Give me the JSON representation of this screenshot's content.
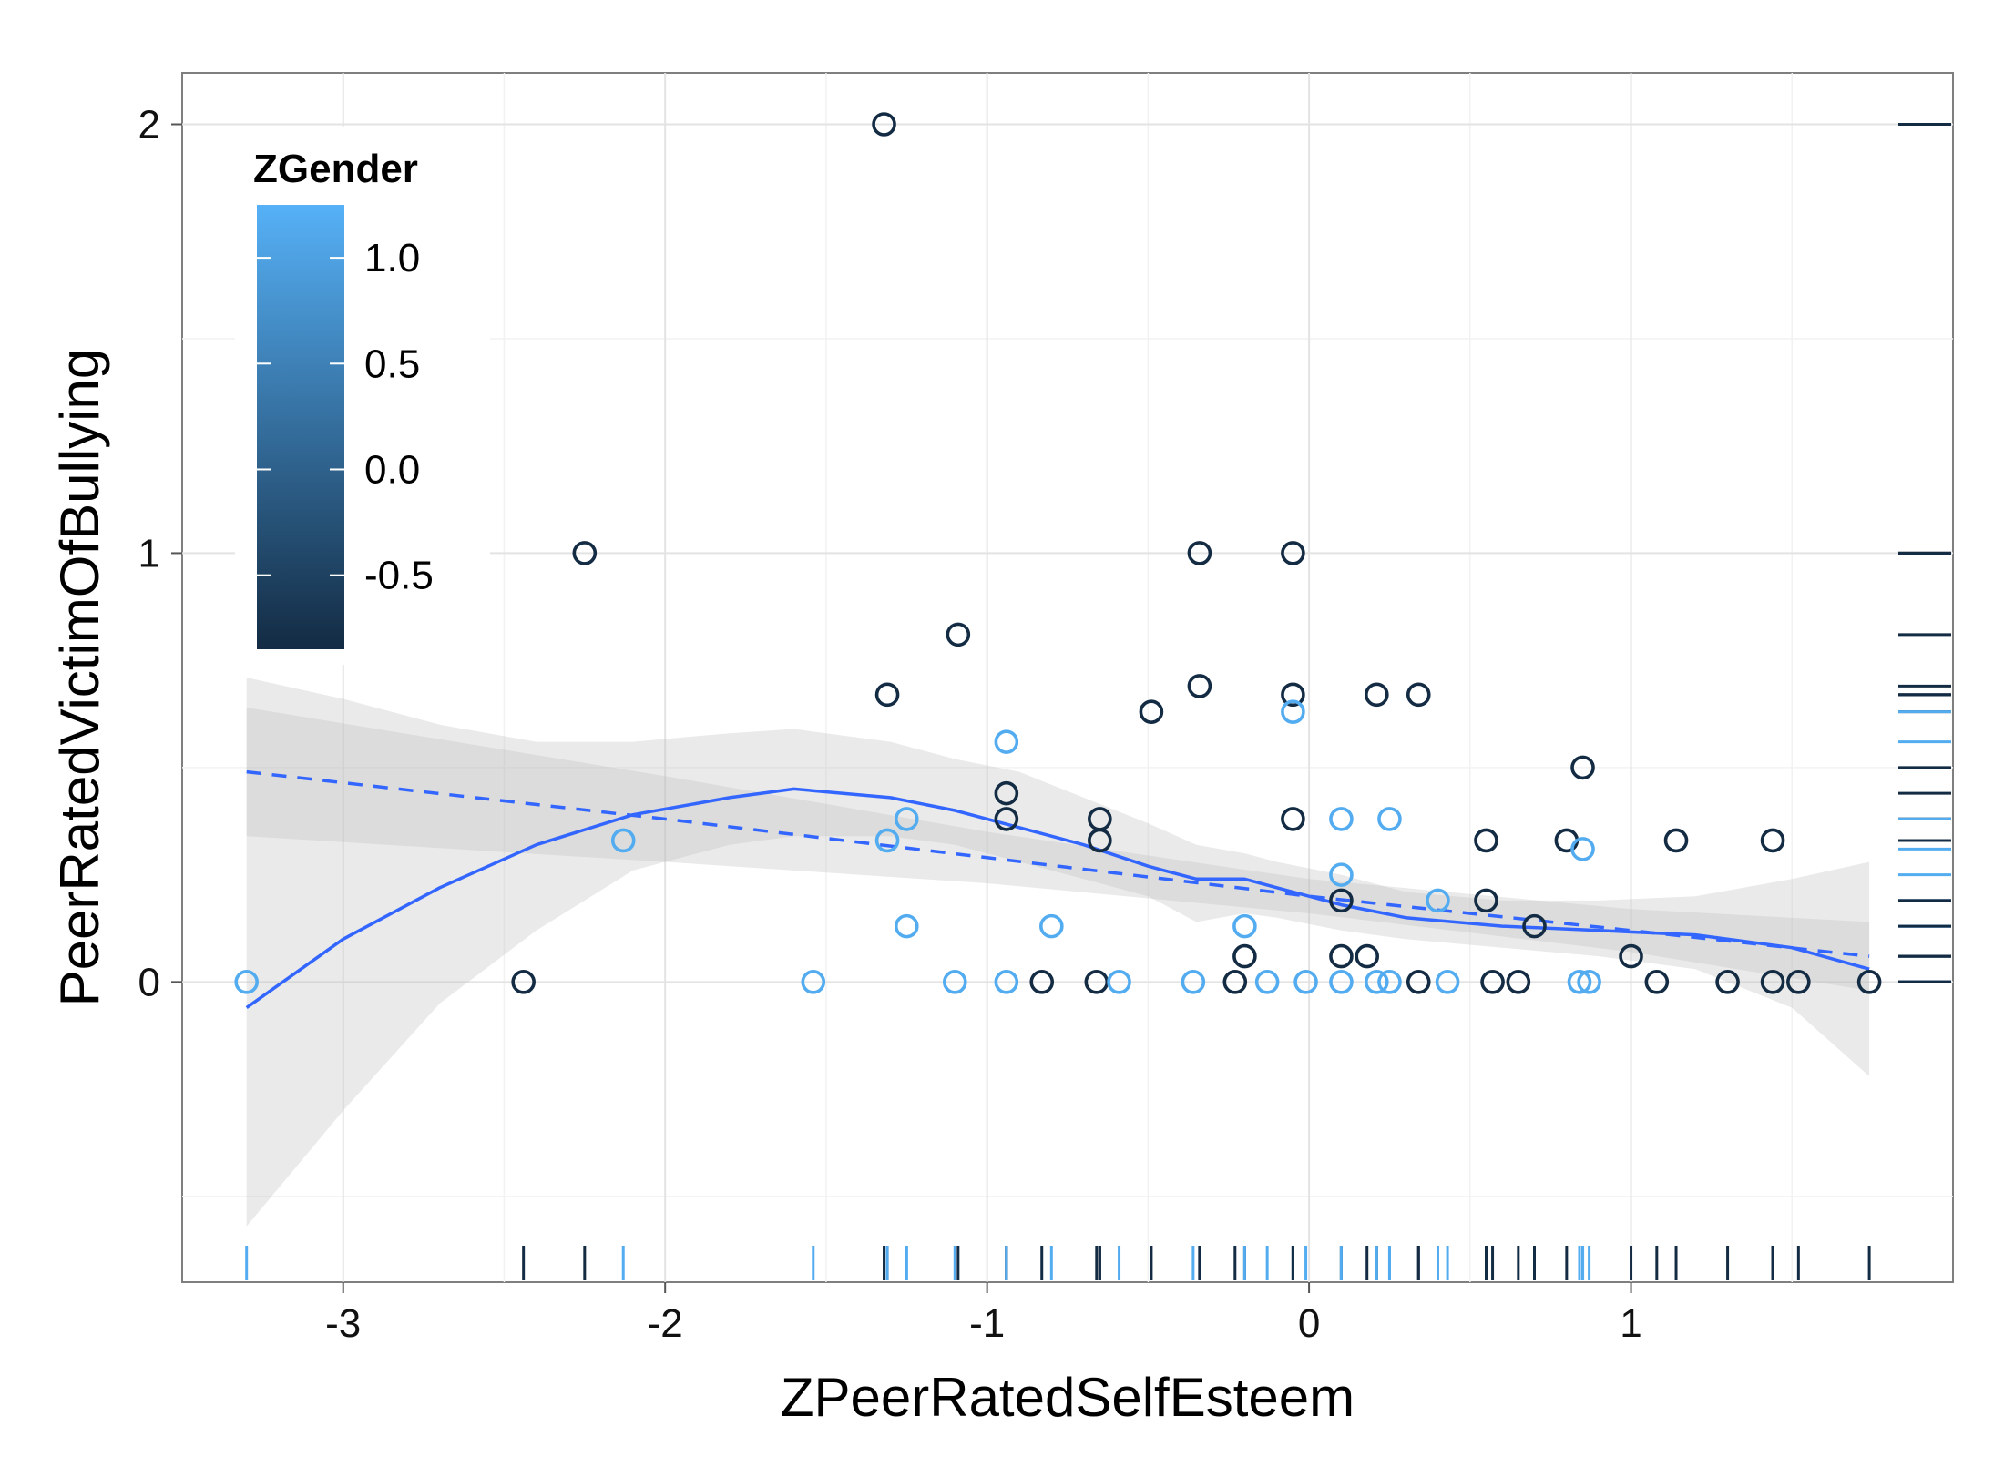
{
  "chart_data": {
    "type": "scatter",
    "xlabel": "ZPeerRatedSelfEsteem",
    "ylabel": "PeerRatedVictimOfBullying",
    "xlim": [
      -3.5,
      2.0
    ],
    "ylim": [
      -0.7,
      2.12
    ],
    "xticks": [
      -3,
      -2,
      -1,
      0,
      1
    ],
    "xtick_labels": [
      "-3",
      "-2",
      "-1",
      "0",
      "1"
    ],
    "yticks": [
      0,
      1,
      2
    ],
    "ytick_labels": [
      "0",
      "1",
      "2"
    ],
    "grid": true,
    "legend": {
      "title": "ZGender",
      "position": "top-left",
      "type": "colorbar",
      "range": [
        -0.85,
        1.25
      ],
      "breaks": [
        1.0,
        0.5,
        0.0,
        -0.5
      ],
      "break_labels": [
        "1.0",
        "0.5",
        "0.0",
        "-0.5"
      ],
      "low_color": "#132b43",
      "high_color": "#56b1f7"
    },
    "colors": {
      "female": "#56b1f7",
      "male": "#132b43",
      "fit": "#3366ff",
      "band": "#dcdcdc"
    },
    "rugs": {
      "bottom": true,
      "right": true
    },
    "points": [
      {
        "x": -3.3,
        "y": 0,
        "g": 1.17
      },
      {
        "x": -2.44,
        "y": 0,
        "g": -0.85
      },
      {
        "x": -2.25,
        "y": 1.0,
        "g": -0.85
      },
      {
        "x": -2.13,
        "y": 0.33,
        "g": 1.17
      },
      {
        "x": -1.54,
        "y": 0,
        "g": 1.17
      },
      {
        "x": -1.32,
        "y": 2.0,
        "g": -0.85
      },
      {
        "x": -1.31,
        "y": 0.67,
        "g": -0.85
      },
      {
        "x": -1.31,
        "y": 0.33,
        "g": 1.17
      },
      {
        "x": -1.25,
        "y": 0.38,
        "g": 1.17
      },
      {
        "x": -1.25,
        "y": 0.13,
        "g": 1.17
      },
      {
        "x": -1.1,
        "y": 0,
        "g": 1.17
      },
      {
        "x": -1.09,
        "y": 0.81,
        "g": -0.85
      },
      {
        "x": -0.94,
        "y": 0.56,
        "g": 1.17
      },
      {
        "x": -0.94,
        "y": 0.44,
        "g": -0.85
      },
      {
        "x": -0.94,
        "y": 0.38,
        "g": -0.85
      },
      {
        "x": -0.94,
        "y": 0,
        "g": 1.17
      },
      {
        "x": -0.83,
        "y": 0,
        "g": -0.85
      },
      {
        "x": -0.8,
        "y": 0.13,
        "g": 1.17
      },
      {
        "x": -0.66,
        "y": 0,
        "g": -0.85
      },
      {
        "x": -0.65,
        "y": 0.38,
        "g": -0.85
      },
      {
        "x": -0.65,
        "y": 0.33,
        "g": -0.85
      },
      {
        "x": -0.59,
        "y": 0,
        "g": 1.17
      },
      {
        "x": -0.49,
        "y": 0.63,
        "g": -0.85
      },
      {
        "x": -0.36,
        "y": 0,
        "g": 1.17
      },
      {
        "x": -0.34,
        "y": 1.0,
        "g": -0.85
      },
      {
        "x": -0.34,
        "y": 0.69,
        "g": -0.85
      },
      {
        "x": -0.23,
        "y": 0,
        "g": -0.85
      },
      {
        "x": -0.2,
        "y": 0.06,
        "g": -0.85
      },
      {
        "x": -0.2,
        "y": 0.13,
        "g": 1.17
      },
      {
        "x": -0.13,
        "y": 0,
        "g": 1.17
      },
      {
        "x": -0.05,
        "y": 1.0,
        "g": -0.85
      },
      {
        "x": -0.05,
        "y": 0.67,
        "g": -0.85
      },
      {
        "x": -0.05,
        "y": 0.63,
        "g": 1.17
      },
      {
        "x": -0.05,
        "y": 0.38,
        "g": -0.85
      },
      {
        "x": -0.01,
        "y": 0,
        "g": 1.17
      },
      {
        "x": 0.1,
        "y": 0.38,
        "g": 1.17
      },
      {
        "x": 0.1,
        "y": 0.25,
        "g": 1.17
      },
      {
        "x": 0.1,
        "y": 0.19,
        "g": -0.85
      },
      {
        "x": 0.1,
        "y": 0.06,
        "g": -0.85
      },
      {
        "x": 0.1,
        "y": 0,
        "g": 1.17
      },
      {
        "x": 0.18,
        "y": 0.06,
        "g": -0.85
      },
      {
        "x": 0.21,
        "y": 0.67,
        "g": -0.85
      },
      {
        "x": 0.21,
        "y": 0,
        "g": 1.17
      },
      {
        "x": 0.25,
        "y": 0.38,
        "g": 1.17
      },
      {
        "x": 0.25,
        "y": 0,
        "g": 1.17
      },
      {
        "x": 0.34,
        "y": 0.67,
        "g": -0.85
      },
      {
        "x": 0.34,
        "y": 0,
        "g": -0.85
      },
      {
        "x": 0.4,
        "y": 0.19,
        "g": 1.17
      },
      {
        "x": 0.43,
        "y": 0,
        "g": 1.17
      },
      {
        "x": 0.55,
        "y": 0.33,
        "g": -0.85
      },
      {
        "x": 0.55,
        "y": 0.19,
        "g": -0.85
      },
      {
        "x": 0.57,
        "y": 0,
        "g": -0.85
      },
      {
        "x": 0.65,
        "y": 0,
        "g": -0.85
      },
      {
        "x": 0.7,
        "y": 0.13,
        "g": -0.85
      },
      {
        "x": 0.8,
        "y": 0.33,
        "g": -0.85
      },
      {
        "x": 0.85,
        "y": 0.5,
        "g": -0.85
      },
      {
        "x": 0.85,
        "y": 0.31,
        "g": 1.17
      },
      {
        "x": 0.84,
        "y": 0,
        "g": 1.17
      },
      {
        "x": 0.87,
        "y": 0,
        "g": 1.17
      },
      {
        "x": 1.0,
        "y": 0.06,
        "g": -0.85
      },
      {
        "x": 1.08,
        "y": 0,
        "g": -0.85
      },
      {
        "x": 1.14,
        "y": 0.33,
        "g": -0.85
      },
      {
        "x": 1.3,
        "y": 0,
        "g": -0.85
      },
      {
        "x": 1.44,
        "y": 0.33,
        "g": -0.85
      },
      {
        "x": 1.44,
        "y": 0,
        "g": -0.85
      },
      {
        "x": 1.52,
        "y": 0,
        "g": -0.85
      },
      {
        "x": 1.74,
        "y": 0,
        "g": -0.85
      }
    ],
    "loess_fit": {
      "x": [
        -3.3,
        -3.0,
        -2.7,
        -2.4,
        -2.1,
        -1.8,
        -1.6,
        -1.3,
        -1.1,
        -0.9,
        -0.7,
        -0.5,
        -0.35,
        -0.2,
        -0.1,
        0.1,
        0.3,
        0.6,
        0.9,
        1.2,
        1.5,
        1.74
      ],
      "y": [
        -0.06,
        0.1,
        0.22,
        0.32,
        0.39,
        0.43,
        0.45,
        0.43,
        0.4,
        0.36,
        0.32,
        0.27,
        0.24,
        0.24,
        0.22,
        0.18,
        0.15,
        0.13,
        0.12,
        0.11,
        0.08,
        0.03
      ],
      "lo": [
        -0.57,
        -0.3,
        -0.05,
        0.12,
        0.26,
        0.32,
        0.34,
        0.34,
        0.32,
        0.28,
        0.24,
        0.2,
        0.14,
        0.16,
        0.15,
        0.12,
        0.1,
        0.08,
        0.06,
        0.03,
        -0.06,
        -0.22
      ],
      "hi": [
        0.71,
        0.66,
        0.6,
        0.56,
        0.56,
        0.58,
        0.59,
        0.56,
        0.52,
        0.49,
        0.43,
        0.37,
        0.32,
        0.3,
        0.28,
        0.25,
        0.21,
        0.19,
        0.19,
        0.2,
        0.24,
        0.28
      ]
    },
    "linear_fit": {
      "x": [
        -3.3,
        -2.0,
        -1.0,
        0.0,
        1.0,
        1.74
      ],
      "y": [
        0.49,
        0.38,
        0.29,
        0.2,
        0.12,
        0.06
      ],
      "lo": [
        0.34,
        0.28,
        0.23,
        0.16,
        0.07,
        -0.02
      ],
      "hi": [
        0.64,
        0.48,
        0.35,
        0.24,
        0.17,
        0.14
      ]
    }
  }
}
